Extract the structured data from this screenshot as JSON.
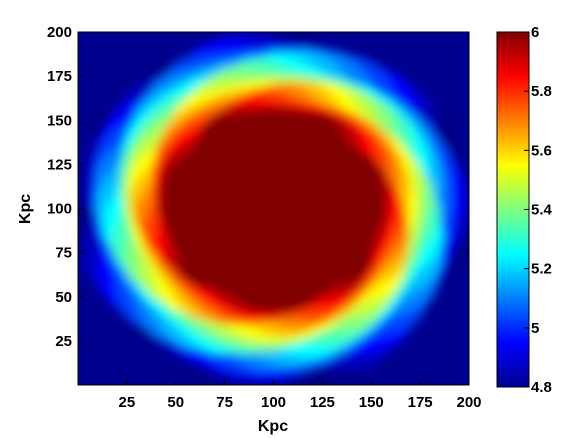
{
  "chart_data": {
    "type": "heatmap",
    "title": "",
    "xlabel": "Kpc",
    "ylabel": "Kpc",
    "xlim": [
      0,
      200
    ],
    "ylim": [
      0,
      200
    ],
    "x_ticks": [
      "25",
      "50",
      "75",
      "100",
      "125",
      "150",
      "175",
      "200"
    ],
    "x_tick_values": [
      25,
      50,
      75,
      100,
      125,
      150,
      175,
      200
    ],
    "y_ticks": [
      "25",
      "50",
      "75",
      "100",
      "125",
      "150",
      "175",
      "200"
    ],
    "y_tick_values": [
      25,
      50,
      75,
      100,
      125,
      150,
      175,
      200
    ],
    "colorbar": {
      "min": 4.8,
      "max": 6,
      "ticks": [
        "6",
        "5.8",
        "5.6",
        "5.4",
        "5.2",
        "5",
        "4.8"
      ],
      "tick_values": [
        6,
        5.8,
        5.6,
        5.4,
        5.2,
        5,
        4.8
      ],
      "colormap": "jet"
    },
    "field": {
      "description_values": "approximately radially symmetric blob: value 6 within ~57 Kpc of center, falling to 4.8 at ~100 Kpc",
      "center": [
        100,
        100
      ],
      "plateau_radius": 57,
      "edge_radius": 100,
      "plateau_value": 6,
      "background_value": 4.8
    },
    "grid": false,
    "legend": "none"
  }
}
